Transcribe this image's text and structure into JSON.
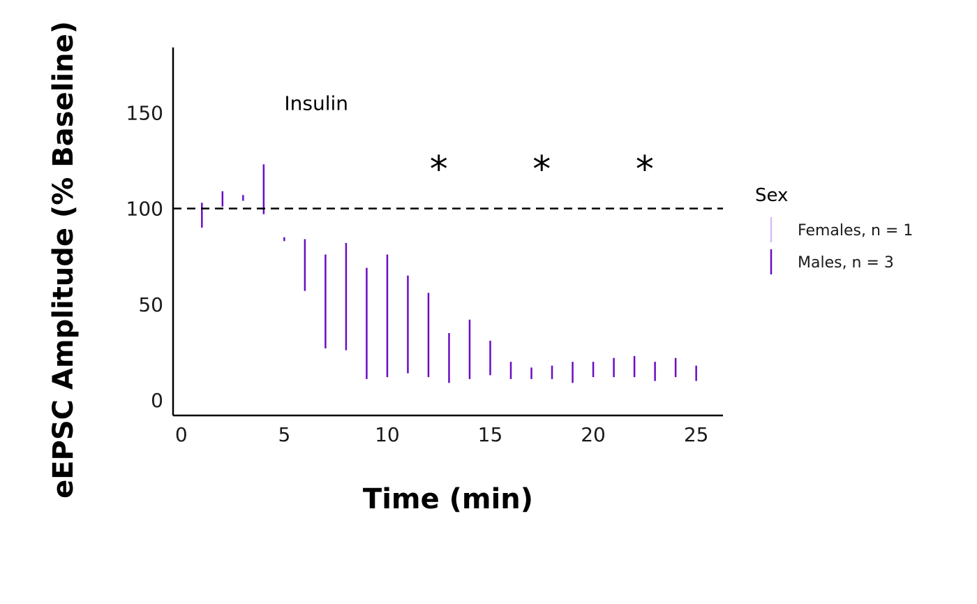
{
  "chart_data": {
    "type": "errorbar",
    "title": "",
    "xlabel": "Time (min)",
    "ylabel": "eEPSC Amplitude (% Baseline)",
    "xlim": [
      -0.4,
      26.3
    ],
    "ylim": [
      -8,
      184
    ],
    "x_ticks": [
      0,
      5,
      10,
      15,
      20,
      25
    ],
    "y_ticks": [
      0,
      50,
      100,
      150
    ],
    "baseline": 100,
    "treatment_label": {
      "text": "Insulin",
      "x": 5,
      "y": 155
    },
    "significance": [
      {
        "text": "*",
        "x": 12.5,
        "y": 125
      },
      {
        "text": "*",
        "x": 17.5,
        "y": 125
      },
      {
        "text": "*",
        "x": 22.5,
        "y": 125
      }
    ],
    "legend": {
      "title": "Sex",
      "position": "right",
      "entries": [
        {
          "label": "Females, n = 1",
          "color": "#d4bdf5"
        },
        {
          "label": "Males, n = 3",
          "color": "#6a0dc4"
        }
      ]
    },
    "series": [
      {
        "name": "Males, n = 3",
        "color": "#6a0dc4",
        "points": [
          {
            "x": 1,
            "low": 90,
            "high": 103
          },
          {
            "x": 2,
            "low": 101,
            "high": 109
          },
          {
            "x": 3,
            "low": 104,
            "high": 107
          },
          {
            "x": 4,
            "low": 97,
            "high": 123
          },
          {
            "x": 5,
            "low": 83,
            "high": 85
          },
          {
            "x": 6,
            "low": 57,
            "high": 84
          },
          {
            "x": 7,
            "low": 27,
            "high": 76
          },
          {
            "x": 8,
            "low": 26,
            "high": 82
          },
          {
            "x": 9,
            "low": 11,
            "high": 69
          },
          {
            "x": 10,
            "low": 12,
            "high": 76
          },
          {
            "x": 11,
            "low": 14,
            "high": 65
          },
          {
            "x": 12,
            "low": 12,
            "high": 56
          },
          {
            "x": 13,
            "low": 9,
            "high": 35
          },
          {
            "x": 14,
            "low": 11,
            "high": 42
          },
          {
            "x": 15,
            "low": 13,
            "high": 31
          },
          {
            "x": 16,
            "low": 11,
            "high": 20
          },
          {
            "x": 17,
            "low": 11,
            "high": 17
          },
          {
            "x": 18,
            "low": 11,
            "high": 18
          },
          {
            "x": 19,
            "low": 9,
            "high": 20
          },
          {
            "x": 20,
            "low": 12,
            "high": 20
          },
          {
            "x": 21,
            "low": 12,
            "high": 22
          },
          {
            "x": 22,
            "low": 12,
            "high": 23
          },
          {
            "x": 23,
            "low": 10,
            "high": 20
          },
          {
            "x": 24,
            "low": 12,
            "high": 22
          },
          {
            "x": 25,
            "low": 10,
            "high": 18
          }
        ]
      }
    ]
  }
}
